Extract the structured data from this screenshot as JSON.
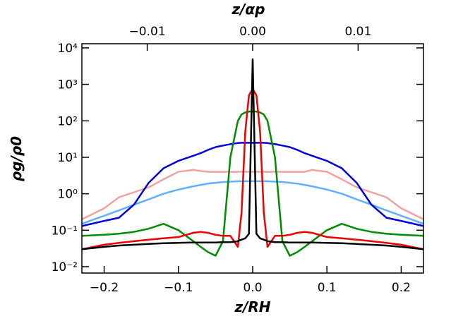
{
  "chart_data": {
    "type": "line",
    "xlabel": "z/RH",
    "x2label": "z/αp",
    "ylabel": "ρg/ρ0",
    "xlim": [
      -0.23,
      0.23
    ],
    "xticks": [
      {
        "value": -0.2,
        "label": "−0.2"
      },
      {
        "value": -0.1,
        "label": "−0.1"
      },
      {
        "value": 0,
        "label": "0.0"
      },
      {
        "value": 0.1,
        "label": "0.1"
      },
      {
        "value": 0.2,
        "label": "0.2"
      }
    ],
    "x2lim": [
      -0.0162,
      0.0162
    ],
    "x2ticks": [
      {
        "value": -0.01,
        "label": "−0.01"
      },
      {
        "value": 0,
        "label": "0.00"
      },
      {
        "value": 0.01,
        "label": "0.01"
      }
    ],
    "ylim": [
      0.0067,
      13000
    ],
    "log_y": true,
    "yticks": [
      {
        "value": 0.01,
        "label": "10⁻²"
      },
      {
        "value": 0.1,
        "label": "10⁻¹"
      },
      {
        "value": 1,
        "label": "10⁰"
      },
      {
        "value": 10,
        "label": "10¹"
      },
      {
        "value": 100,
        "label": "10²"
      },
      {
        "value": 1000,
        "label": "10³"
      },
      {
        "value": 10000,
        "label": "10⁴"
      }
    ],
    "x": [
      -0.23,
      -0.2,
      -0.18,
      -0.16,
      -0.14,
      -0.12,
      -0.1,
      -0.08,
      -0.07,
      -0.06,
      -0.05,
      -0.04,
      -0.03,
      -0.02,
      -0.015,
      -0.01,
      -0.005,
      0,
      0.005,
      0.01,
      0.015,
      0.02,
      0.03,
      0.04,
      0.05,
      0.06,
      0.07,
      0.08,
      0.1,
      0.12,
      0.14,
      0.16,
      0.18,
      0.2,
      0.23
    ],
    "series": [
      {
        "color": "#f4a0a0",
        "values": [
          0.2,
          0.4,
          0.8,
          1.1,
          1.5,
          2.5,
          4,
          4.5,
          4.2,
          4,
          4,
          4,
          4,
          4,
          4,
          4,
          4,
          4,
          4,
          4,
          4,
          4,
          4,
          4,
          4,
          4,
          4,
          4.5,
          4,
          2.5,
          1.5,
          1.1,
          0.8,
          0.4,
          0.2
        ]
      },
      {
        "color": "#5fb0ff",
        "values": [
          0.15,
          0.25,
          0.35,
          0.5,
          0.7,
          1,
          1.3,
          1.6,
          1.75,
          1.9,
          2,
          2.1,
          2.15,
          2.2,
          2.2,
          2.2,
          2.2,
          2.2,
          2.2,
          2.2,
          2.2,
          2.2,
          2.15,
          2.1,
          2,
          1.9,
          1.75,
          1.6,
          1.3,
          1,
          0.7,
          0.5,
          0.35,
          0.25,
          0.15
        ]
      },
      {
        "color": "#0000dd",
        "values": [
          0.13,
          0.18,
          0.22,
          0.5,
          2,
          5,
          8,
          11,
          13,
          16,
          19,
          21,
          23,
          24.5,
          25,
          25,
          25,
          25,
          25,
          25,
          25,
          24.5,
          23,
          21,
          19,
          16,
          13,
          11,
          8,
          5,
          2,
          0.5,
          0.22,
          0.18,
          0.13
        ]
      },
      {
        "color": "#008c00",
        "values": [
          0.07,
          0.075,
          0.08,
          0.09,
          0.11,
          0.15,
          0.1,
          0.05,
          0.035,
          0.025,
          0.02,
          0.05,
          10,
          100,
          150,
          170,
          180,
          180,
          180,
          170,
          150,
          100,
          10,
          0.05,
          0.02,
          0.025,
          0.035,
          0.05,
          0.1,
          0.15,
          0.11,
          0.09,
          0.08,
          0.075,
          0.07
        ]
      },
      {
        "color": "#ee0000",
        "values": [
          0.03,
          0.04,
          0.045,
          0.05,
          0.055,
          0.06,
          0.065,
          0.085,
          0.09,
          0.085,
          0.075,
          0.07,
          0.07,
          0.035,
          0.3,
          50,
          500,
          750,
          500,
          50,
          0.3,
          0.035,
          0.07,
          0.07,
          0.075,
          0.085,
          0.09,
          0.085,
          0.065,
          0.06,
          0.055,
          0.05,
          0.045,
          0.04,
          0.03
        ]
      },
      {
        "color": "#000000",
        "values": [
          0.03,
          0.035,
          0.038,
          0.04,
          0.042,
          0.044,
          0.045,
          0.046,
          0.046,
          0.046,
          0.046,
          0.047,
          0.047,
          0.05,
          0.055,
          0.06,
          0.08,
          4900,
          0.08,
          0.06,
          0.055,
          0.05,
          0.047,
          0.047,
          0.046,
          0.046,
          0.046,
          0.046,
          0.045,
          0.044,
          0.042,
          0.04,
          0.038,
          0.035,
          0.03
        ]
      }
    ]
  }
}
